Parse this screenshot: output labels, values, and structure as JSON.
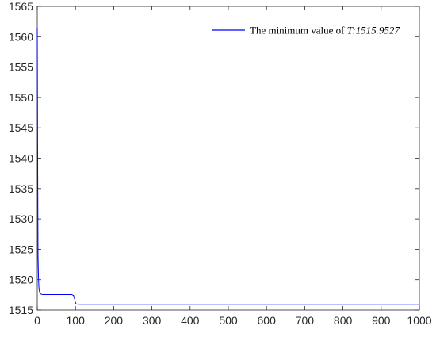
{
  "chart_data": {
    "type": "line",
    "title": "",
    "xlabel": "",
    "ylabel": "",
    "xlim": [
      0,
      1000
    ],
    "ylim": [
      1515,
      1565
    ],
    "xticks": [
      0,
      100,
      200,
      300,
      400,
      500,
      600,
      700,
      800,
      900,
      1000
    ],
    "yticks": [
      1515,
      1520,
      1525,
      1530,
      1535,
      1540,
      1545,
      1550,
      1555,
      1560,
      1565
    ],
    "grid": false,
    "legend_position": "top-right",
    "legend": {
      "prefix": "The minimum value of ",
      "variable": "T",
      "value": ":1515.9527"
    },
    "series": [
      {
        "name": "The minimum value of T:1515.9527",
        "color": "#0000ff",
        "x": [
          0,
          1,
          2,
          3,
          4,
          5,
          7,
          10,
          15,
          30,
          50,
          70,
          90,
          95,
          98,
          100,
          102,
          110,
          150,
          200,
          300,
          400,
          500,
          600,
          700,
          800,
          900,
          1000
        ],
        "y": [
          1561.5,
          1540.0,
          1524.0,
          1521.0,
          1519.0,
          1518.3,
          1517.8,
          1517.6,
          1517.55,
          1517.55,
          1517.55,
          1517.55,
          1517.55,
          1517.4,
          1516.8,
          1516.2,
          1516.0,
          1515.95,
          1515.9527,
          1515.9527,
          1515.9527,
          1515.9527,
          1515.9527,
          1515.9527,
          1515.9527,
          1515.9527,
          1515.9527,
          1515.9527
        ]
      }
    ]
  }
}
